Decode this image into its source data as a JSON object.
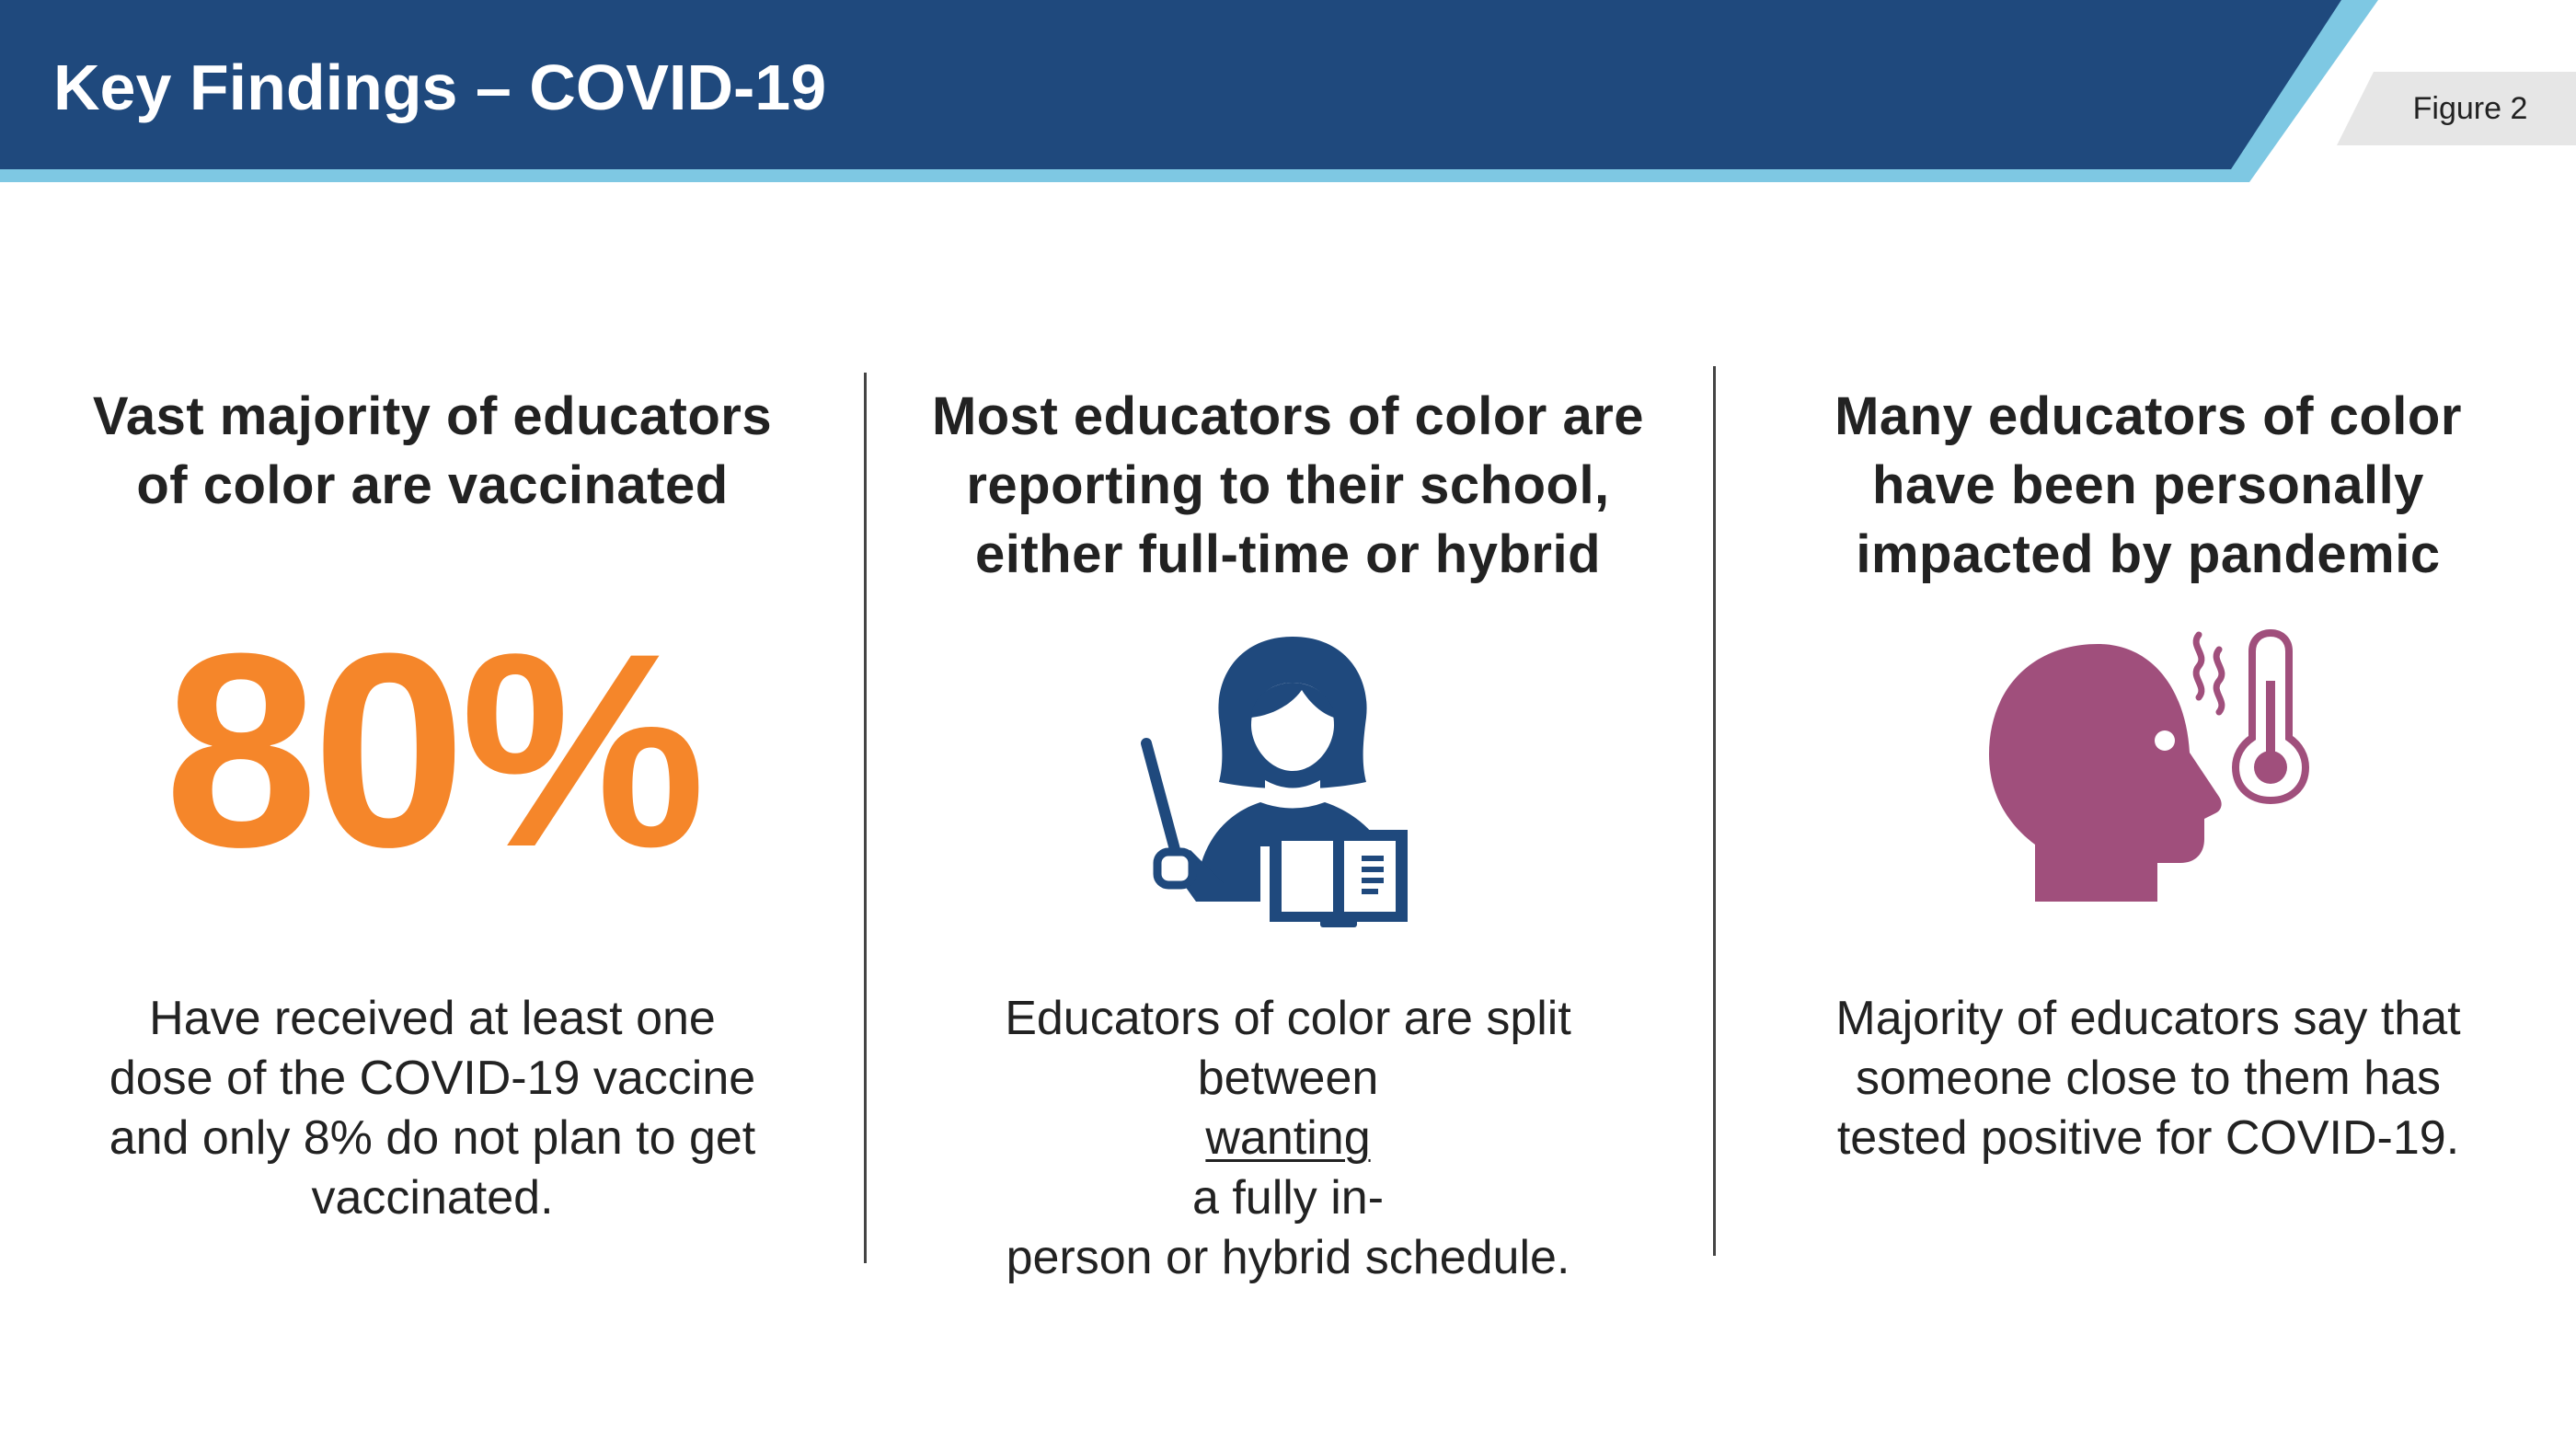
{
  "header": {
    "title": "Key Findings – COVID-19",
    "figure_label": "Figure 2"
  },
  "colors": {
    "banner": "#1f497d",
    "banner_accent": "#7ec8e3",
    "stat_orange": "#f5862a",
    "icon_navy": "#1f497d",
    "icon_purple": "#a04f7c",
    "tag_gray": "#e6e6e6"
  },
  "columns": [
    {
      "heading": [
        "Vast majority of educators",
        "of color are vaccinated"
      ],
      "stat": "80%",
      "body": [
        "Have received at least one",
        "dose of the COVID-19 vaccine",
        "and only 8% do not plan to get",
        "vaccinated."
      ]
    },
    {
      "heading": [
        "Most educators of color are",
        "reporting to their school,",
        "either full-time or hybrid"
      ],
      "icon": "teacher-icon",
      "body": {
        "line1": "Educators of color are split",
        "line2_pre": "between ",
        "line2_underlined": "wanting",
        "line2_post": " a fully in-",
        "line3": "person or hybrid schedule."
      }
    },
    {
      "heading": [
        "Many educators of color",
        "have been personally",
        "impacted by pandemic"
      ],
      "icon": "fever-head-icon",
      "body": [
        "Majority of educators say that",
        "someone close to them has",
        "tested positive for COVID-19."
      ]
    }
  ]
}
